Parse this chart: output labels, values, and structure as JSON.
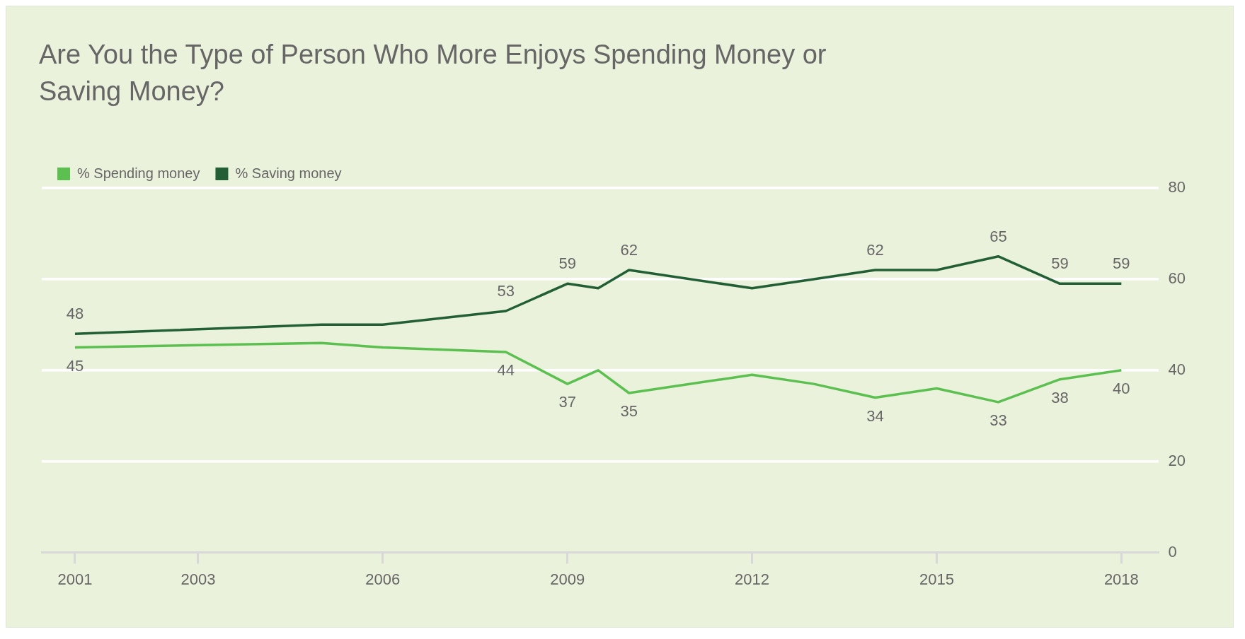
{
  "chart_data": {
    "type": "line",
    "title": "Are You the Type of Person Who More Enjoys Spending Money or Saving Money?",
    "x": [
      2001,
      2005,
      2006,
      2008,
      2009,
      2009.5,
      2010,
      2012,
      2013,
      2014,
      2015,
      2016,
      2017,
      2018
    ],
    "series": [
      {
        "name": "% Spending money",
        "color": "#5bc04f",
        "values": [
          45,
          46,
          45,
          44,
          37,
          40,
          35,
          39,
          37,
          34,
          36,
          33,
          38,
          40
        ],
        "value_labels": [
          "45",
          null,
          null,
          "44",
          "37",
          null,
          "35",
          null,
          null,
          "34",
          null,
          "33",
          "38",
          "40"
        ]
      },
      {
        "name": "% Saving money",
        "color": "#235f35",
        "values": [
          48,
          50,
          50,
          53,
          59,
          58,
          62,
          58,
          60,
          62,
          62,
          65,
          59,
          59
        ],
        "value_labels": [
          "48",
          null,
          null,
          "53",
          "59",
          null,
          "62",
          null,
          null,
          "62",
          null,
          "65",
          "59",
          "59"
        ]
      }
    ],
    "xlim": [
      2000.46,
      2018.6
    ],
    "xticks": [
      2001,
      2003,
      2006,
      2009,
      2012,
      2015,
      2018
    ],
    "ylim": [
      0,
      80
    ],
    "yticks": [
      0,
      20,
      40,
      60,
      80
    ],
    "grid": "y",
    "legend": "top left",
    "marker": "none",
    "line_style": "solid"
  }
}
